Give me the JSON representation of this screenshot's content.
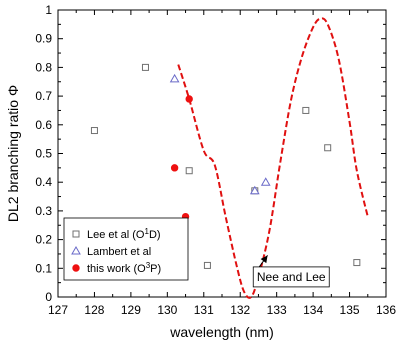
{
  "chart_data": {
    "type": "scatter",
    "xlabel": "wavelength (nm)",
    "ylabel": "DL2 branching ratio Φ",
    "xlim": [
      127,
      136
    ],
    "ylim": [
      0,
      1
    ],
    "xticks": [
      127,
      128,
      129,
      130,
      131,
      132,
      133,
      134,
      135,
      136
    ],
    "yticks": [
      0,
      0.1,
      0.2,
      0.3,
      0.4,
      0.5,
      0.6,
      0.7,
      0.8,
      0.9,
      1
    ],
    "legend_position": "bottom-left",
    "series": [
      {
        "name": "Lee et al (O1D)",
        "marker": "square-open",
        "color": "#707070",
        "x": [
          128.0,
          129.4,
          130.6,
          131.1,
          132.4,
          133.8,
          134.4,
          135.2
        ],
        "y": [
          0.58,
          0.8,
          0.44,
          0.11,
          0.37,
          0.65,
          0.52,
          0.12
        ]
      },
      {
        "name": "Lambert et al",
        "marker": "triangle-open",
        "color": "#6a6ac8",
        "x": [
          130.2,
          132.4,
          132.7
        ],
        "y": [
          0.76,
          0.37,
          0.4
        ]
      },
      {
        "name": "this work (O3P)",
        "marker": "circle-filled",
        "color": "#ee1111",
        "x": [
          130.6,
          130.2,
          130.5
        ],
        "y": [
          0.69,
          0.45,
          0.28
        ]
      },
      {
        "name": "Nee and Lee",
        "style": "dashed-line",
        "color": "#e01010",
        "x": [
          130.3,
          130.6,
          131.0,
          131.3,
          131.6,
          131.9,
          132.1,
          132.3,
          132.5,
          132.8,
          133.1,
          133.4,
          133.7,
          134.0,
          134.2,
          134.4,
          134.7,
          135.0,
          135.2,
          135.5
        ],
        "y": [
          0.81,
          0.69,
          0.51,
          0.46,
          0.28,
          0.11,
          0.02,
          0.0,
          0.07,
          0.23,
          0.47,
          0.69,
          0.84,
          0.94,
          0.97,
          0.95,
          0.83,
          0.61,
          0.44,
          0.28
        ]
      }
    ],
    "legend": [
      {
        "label": "Lee et al (O",
        "sup": "1",
        "suffix": "D)"
      },
      {
        "label": "Lambert et al",
        "sup": "",
        "suffix": ""
      },
      {
        "label": "this work (O",
        "sup": "3",
        "suffix": "P)"
      }
    ],
    "annotations": [
      {
        "text": "Nee and Lee",
        "x": 133.4,
        "y": 0.07,
        "arrow_to": [
          132.75,
          0.145
        ]
      }
    ]
  }
}
